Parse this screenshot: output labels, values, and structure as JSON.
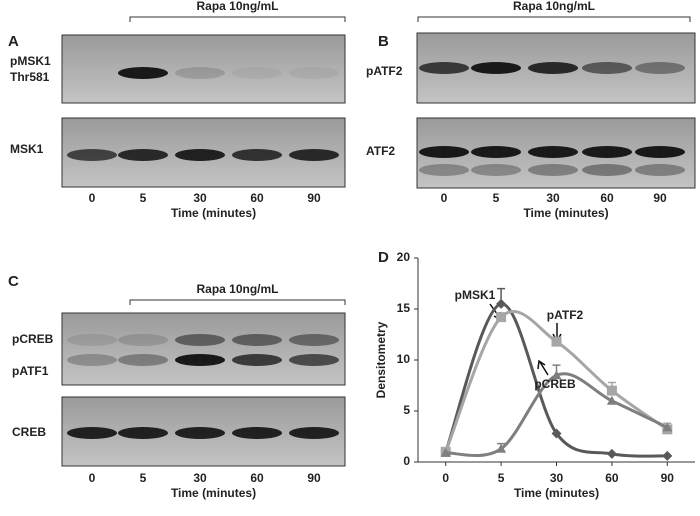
{
  "panels": [
    {
      "label": "A",
      "treatment": "Rapa 10ng/mL",
      "blots": [
        {
          "labels": [
            "pMSK1",
            "Thr581"
          ]
        },
        {
          "labels": [
            "MSK1"
          ]
        }
      ],
      "lanes": [
        "0",
        "5",
        "30",
        "60",
        "90"
      ],
      "x_title": "Time (minutes)"
    },
    {
      "label": "B",
      "treatment": "Rapa 10ng/mL",
      "blots": [
        {
          "labels": [
            "pATF2"
          ]
        },
        {
          "labels": [
            "ATF2"
          ]
        }
      ],
      "lanes": [
        "0",
        "5",
        "30",
        "60",
        "90"
      ],
      "x_title": "Time (minutes)"
    },
    {
      "label": "C",
      "treatment": "Rapa 10ng/mL",
      "blots": [
        {
          "labels": [
            "pCREB",
            "pATF1"
          ]
        },
        {
          "labels": [
            "CREB"
          ]
        }
      ],
      "lanes": [
        "0",
        "5",
        "30",
        "60",
        "90"
      ],
      "x_title": "Time (minutes)"
    }
  ],
  "chart_data": {
    "type": "line",
    "panel_label": "D",
    "x_title": "Time (minutes)",
    "y_title": "Densitometry",
    "categories": [
      "0",
      "5",
      "30",
      "60",
      "90"
    ],
    "ylim": [
      0,
      20
    ],
    "yticks": [
      0,
      5,
      10,
      15,
      20
    ],
    "series": [
      {
        "name": "pMSK1",
        "color": "#595959",
        "marker": "diamond",
        "values": [
          1,
          15.5,
          2.8,
          0.8,
          0.6
        ],
        "errors": [
          null,
          1.5,
          null,
          null,
          null
        ]
      },
      {
        "name": "pATF2",
        "color": "#a6a6a6",
        "marker": "square",
        "values": [
          1,
          14.2,
          11.8,
          7.0,
          3.2
        ],
        "errors": [
          null,
          null,
          null,
          0.8,
          0.6
        ]
      },
      {
        "name": "pCREB",
        "color": "#7f7f7f",
        "marker": "triangle",
        "values": [
          0.9,
          1.3,
          8.5,
          6.0,
          3.4
        ],
        "errors": [
          null,
          0.5,
          1.0,
          null,
          null
        ]
      }
    ]
  }
}
